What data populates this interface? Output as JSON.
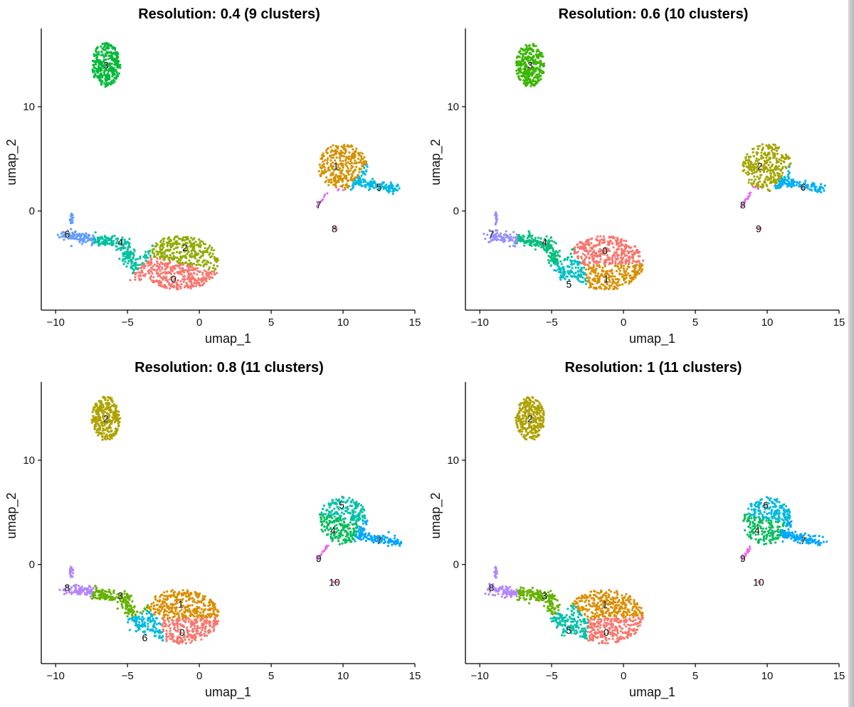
{
  "chart_data": [
    {
      "type": "scatter",
      "title": "Resolution: 0.4 (9 clusters)",
      "xlabel": "umap_1",
      "ylabel": "umap_2",
      "xlim": [
        -11.0,
        15.0
      ],
      "ylim": [
        -9.5,
        17.5
      ],
      "xticks": [
        -10,
        -5,
        0,
        5,
        10,
        15
      ],
      "yticks": [
        0,
        10
      ],
      "clusters": [
        {
          "label": "0",
          "color": "#F8766D",
          "center": [
            -1.8,
            -6.5
          ]
        },
        {
          "label": "1",
          "color": "#D39200",
          "center": [
            9.5,
            4.3
          ]
        },
        {
          "label": "2",
          "color": "#93AA00",
          "center": [
            -1.0,
            -3.5
          ]
        },
        {
          "label": "3",
          "color": "#00BA38",
          "center": [
            -6.5,
            14.0
          ]
        },
        {
          "label": "4",
          "color": "#00C19F",
          "center": [
            -5.5,
            -3.0
          ]
        },
        {
          "label": "5",
          "color": "#00B9E3",
          "center": [
            12.5,
            2.3
          ]
        },
        {
          "label": "6",
          "color": "#619CFF",
          "center": [
            -9.2,
            -2.2
          ]
        },
        {
          "label": "7",
          "color": "#DB72FB",
          "center": [
            8.3,
            0.6
          ]
        },
        {
          "label": "8",
          "color": "#FF61C3",
          "center": [
            9.4,
            -1.7
          ]
        }
      ]
    },
    {
      "type": "scatter",
      "title": "Resolution: 0.6 (10 clusters)",
      "xlabel": "umap_1",
      "ylabel": "umap_2",
      "xlim": [
        -11.0,
        15.0
      ],
      "ylim": [
        -9.5,
        17.5
      ],
      "xticks": [
        -10,
        -5,
        0,
        5,
        10,
        15
      ],
      "yticks": [
        0,
        10
      ],
      "clusters": [
        {
          "label": "0",
          "color": "#F8766D",
          "center": [
            -1.3,
            -3.8
          ]
        },
        {
          "label": "1",
          "color": "#D89000",
          "center": [
            -1.2,
            -6.5
          ]
        },
        {
          "label": "2",
          "color": "#A3A500",
          "center": [
            9.5,
            4.3
          ]
        },
        {
          "label": "3",
          "color": "#39B600",
          "center": [
            -6.5,
            14.0
          ]
        },
        {
          "label": "4",
          "color": "#00BF7D",
          "center": [
            -5.5,
            -3.0
          ]
        },
        {
          "label": "5",
          "color": "#00BFC4",
          "center": [
            -3.8,
            -7.0
          ]
        },
        {
          "label": "6",
          "color": "#00B0F6",
          "center": [
            12.5,
            2.3
          ]
        },
        {
          "label": "7",
          "color": "#9590FF",
          "center": [
            -9.2,
            -2.2
          ]
        },
        {
          "label": "8",
          "color": "#E76BF3",
          "center": [
            8.3,
            0.6
          ]
        },
        {
          "label": "9",
          "color": "#FF62BC",
          "center": [
            9.4,
            -1.7
          ]
        }
      ]
    },
    {
      "type": "scatter",
      "title": "Resolution: 0.8 (11 clusters)",
      "xlabel": "umap_1",
      "ylabel": "umap_2",
      "xlim": [
        -11.0,
        15.0
      ],
      "ylim": [
        -9.5,
        17.5
      ],
      "xticks": [
        -10,
        -5,
        0,
        5,
        10,
        15
      ],
      "yticks": [
        0,
        10
      ],
      "clusters": [
        {
          "label": "0",
          "color": "#F8766D",
          "center": [
            -1.2,
            -6.5
          ]
        },
        {
          "label": "1",
          "color": "#DB8E00",
          "center": [
            -1.3,
            -3.8
          ]
        },
        {
          "label": "2",
          "color": "#AEA200",
          "center": [
            -6.5,
            14.0
          ]
        },
        {
          "label": "3",
          "color": "#64B200",
          "center": [
            -5.5,
            -3.0
          ]
        },
        {
          "label": "4",
          "color": "#00BD5C",
          "center": [
            9.3,
            3.3
          ]
        },
        {
          "label": "5",
          "color": "#00C1A7",
          "center": [
            9.9,
            5.7
          ]
        },
        {
          "label": "6",
          "color": "#00BADE",
          "center": [
            -3.8,
            -7.0
          ]
        },
        {
          "label": "7",
          "color": "#00A6FF",
          "center": [
            12.5,
            2.3
          ]
        },
        {
          "label": "8",
          "color": "#B385FF",
          "center": [
            -9.2,
            -2.2
          ]
        },
        {
          "label": "9",
          "color": "#EF67EB",
          "center": [
            8.3,
            0.6
          ]
        },
        {
          "label": "10",
          "color": "#FF63B6",
          "center": [
            9.4,
            -1.7
          ]
        }
      ]
    },
    {
      "type": "scatter",
      "title": "Resolution: 1 (11 clusters)",
      "xlabel": "umap_1",
      "ylabel": "umap_2",
      "xlim": [
        -11.0,
        15.0
      ],
      "ylim": [
        -9.5,
        17.5
      ],
      "xticks": [
        -10,
        -5,
        0,
        5,
        10,
        15
      ],
      "yticks": [
        0,
        10
      ],
      "clusters": [
        {
          "label": "0",
          "color": "#F8766D",
          "center": [
            -1.2,
            -6.5
          ]
        },
        {
          "label": "1",
          "color": "#DB8E00",
          "center": [
            -1.3,
            -3.8
          ]
        },
        {
          "label": "2",
          "color": "#AEA200",
          "center": [
            -6.5,
            14.0
          ]
        },
        {
          "label": "3",
          "color": "#64B200",
          "center": [
            -5.5,
            -3.0
          ]
        },
        {
          "label": "4",
          "color": "#00BD5C",
          "center": [
            9.3,
            3.3
          ]
        },
        {
          "label": "5",
          "color": "#00C1A7",
          "center": [
            -3.8,
            -6.3
          ]
        },
        {
          "label": "6",
          "color": "#00BADE",
          "center": [
            9.9,
            5.7
          ]
        },
        {
          "label": "7",
          "color": "#00A6FF",
          "center": [
            12.5,
            2.3
          ]
        },
        {
          "label": "8",
          "color": "#B385FF",
          "center": [
            -9.2,
            -2.2
          ]
        },
        {
          "label": "9",
          "color": "#EF67EB",
          "center": [
            8.3,
            0.6
          ]
        },
        {
          "label": "10",
          "color": "#FF63B6",
          "center": [
            9.4,
            -1.7
          ]
        }
      ]
    }
  ]
}
